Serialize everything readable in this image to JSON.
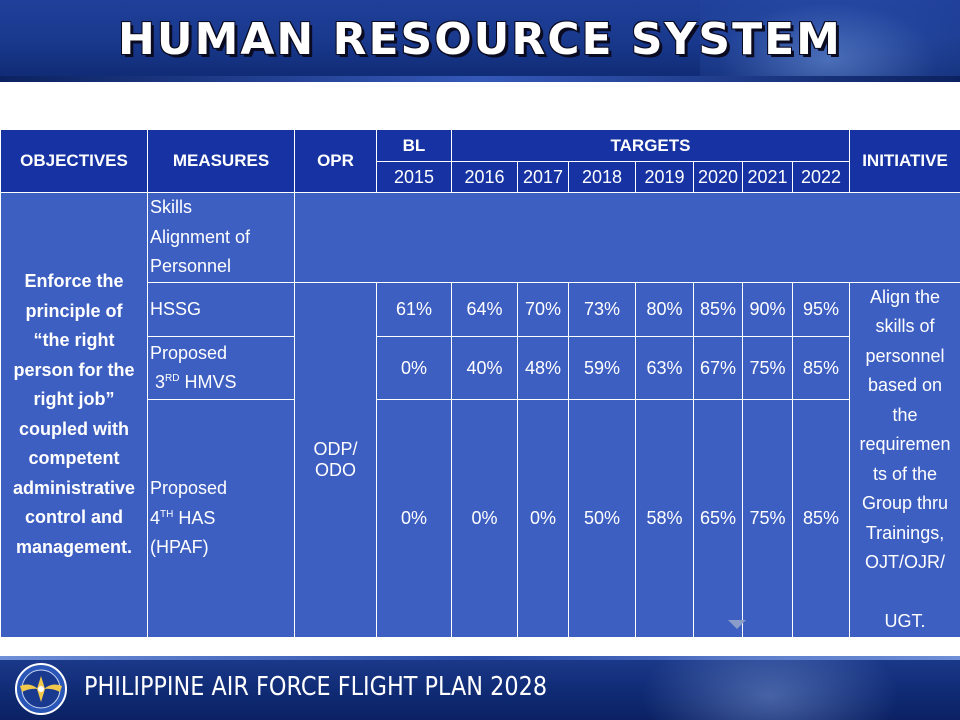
{
  "header": {
    "title": "HUMAN RESOURCE SYSTEM"
  },
  "table": {
    "headers": {
      "objectives": "OBJECTIVES",
      "measures": "MEASURES",
      "opr": "OPR",
      "bl": "BL",
      "targets": "TARGETS",
      "initiative": "INITIATIVE",
      "years": [
        "2015",
        "2016",
        "2017",
        "2018",
        "2019",
        "2020",
        "2021",
        "2022"
      ]
    },
    "objective_lines": [
      "Enforce the",
      "principle of",
      "“the right",
      "person for the",
      "right job”",
      "coupled with",
      "competent",
      "administrative",
      "control and",
      "management."
    ],
    "skills_lines": [
      "Skills",
      "Alignment of",
      "Personnel"
    ],
    "opr_lines": [
      "ODP/",
      "ODO"
    ],
    "initiative_lines": [
      "Align the",
      "skills of",
      "personnel",
      "based on",
      "the",
      "requiremen",
      "ts of the",
      "Group thru",
      "Trainings,",
      "OJT/OJR/",
      "",
      "UGT."
    ],
    "rows": [
      {
        "measure": "HSSG",
        "values": [
          "61%",
          "64%",
          "70%",
          "73%",
          "80%",
          "85%",
          "90%",
          "95%"
        ]
      },
      {
        "measure_line1": "Proposed",
        "measure_prefix": "3",
        "measure_sup": "RD",
        "measure_suffix": " HMVS",
        "values": [
          "0%",
          "40%",
          "48%",
          "59%",
          "63%",
          "67%",
          "75%",
          "85%"
        ]
      },
      {
        "measure_line1": "Proposed",
        "measure_prefix": "4",
        "measure_sup": "TH",
        "measure_suffix": " HAS",
        "measure_line3": "(HPAF)",
        "values": [
          "0%",
          "0%",
          "0%",
          "50%",
          "58%",
          "65%",
          "75%",
          "85%"
        ]
      }
    ]
  },
  "footer": {
    "text": "PHILIPPINE AIR FORCE FLIGHT PLAN 2028",
    "logo_icon": "air-force-wings-emblem-icon"
  },
  "colors": {
    "header_bg": "#1733a3",
    "body_bg": "#3e5fc2",
    "banner": "#1a3a8f"
  }
}
